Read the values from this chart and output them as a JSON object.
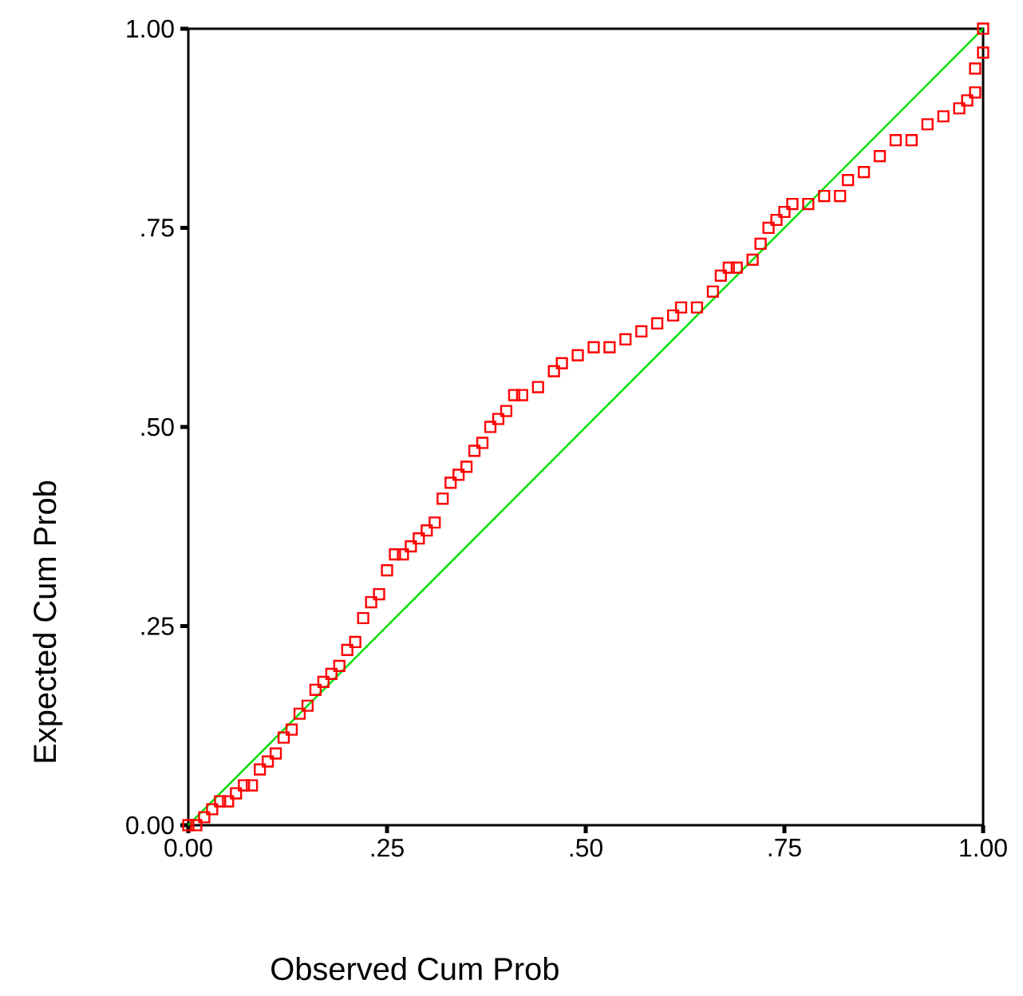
{
  "chart_data": {
    "type": "scatter",
    "xlabel": "Observed Cum Prob",
    "ylabel": "Expected Cum Prob",
    "xlim": [
      0,
      1
    ],
    "ylim": [
      0,
      1
    ],
    "xticks": [
      {
        "value": 0,
        "label": "0.00"
      },
      {
        "value": 0.25,
        "label": ".25"
      },
      {
        "value": 0.5,
        "label": ".50"
      },
      {
        "value": 0.75,
        "label": ".75"
      },
      {
        "value": 1,
        "label": "1.00"
      }
    ],
    "yticks": [
      {
        "value": 0,
        "label": "0.00"
      },
      {
        "value": 0.25,
        "label": ".25"
      },
      {
        "value": 0.5,
        "label": ".50"
      },
      {
        "value": 0.75,
        "label": ".75"
      },
      {
        "value": 1,
        "label": "1.00"
      }
    ],
    "grid": false,
    "series": [
      {
        "marker": "square",
        "color": "#ff0000",
        "x": [
          0,
          0.01,
          0.02,
          0.03,
          0.04,
          0.05,
          0.06,
          0.07,
          0.08,
          0.09,
          0.1,
          0.11,
          0.12,
          0.13,
          0.14,
          0.15,
          0.16,
          0.17,
          0.18,
          0.19,
          0.2,
          0.21,
          0.22,
          0.23,
          0.24,
          0.25,
          0.26,
          0.27,
          0.28,
          0.29,
          0.3,
          0.31,
          0.32,
          0.33,
          0.34,
          0.35,
          0.36,
          0.37,
          0.38,
          0.39,
          0.4,
          0.41,
          0.42,
          0.44,
          0.46,
          0.47,
          0.49,
          0.51,
          0.53,
          0.55,
          0.57,
          0.59,
          0.61,
          0.62,
          0.64,
          0.66,
          0.67,
          0.68,
          0.69,
          0.71,
          0.72,
          0.73,
          0.74,
          0.75,
          0.76,
          0.78,
          0.8,
          0.82,
          0.83,
          0.85,
          0.87,
          0.89,
          0.91,
          0.93,
          0.95,
          0.97,
          0.98,
          0.99,
          0.99,
          1.0,
          1.0
        ],
        "values": [
          0,
          0.0,
          0.01,
          0.02,
          0.03,
          0.03,
          0.04,
          0.05,
          0.05,
          0.07,
          0.08,
          0.09,
          0.11,
          0.12,
          0.14,
          0.15,
          0.17,
          0.18,
          0.19,
          0.2,
          0.22,
          0.23,
          0.26,
          0.28,
          0.29,
          0.32,
          0.34,
          0.34,
          0.35,
          0.36,
          0.37,
          0.38,
          0.41,
          0.43,
          0.44,
          0.45,
          0.47,
          0.48,
          0.5,
          0.51,
          0.52,
          0.54,
          0.54,
          0.55,
          0.57,
          0.58,
          0.59,
          0.6,
          0.6,
          0.61,
          0.62,
          0.63,
          0.64,
          0.65,
          0.65,
          0.67,
          0.69,
          0.7,
          0.7,
          0.71,
          0.73,
          0.75,
          0.76,
          0.77,
          0.78,
          0.78,
          0.79,
          0.79,
          0.81,
          0.82,
          0.84,
          0.86,
          0.86,
          0.88,
          0.89,
          0.9,
          0.91,
          0.92,
          0.95,
          0.97,
          1.0
        ]
      },
      {
        "type": "line",
        "marker": "none",
        "line_style": "solid",
        "color": "#00e000",
        "x": [
          0,
          1
        ],
        "values": [
          0,
          1
        ]
      }
    ]
  }
}
